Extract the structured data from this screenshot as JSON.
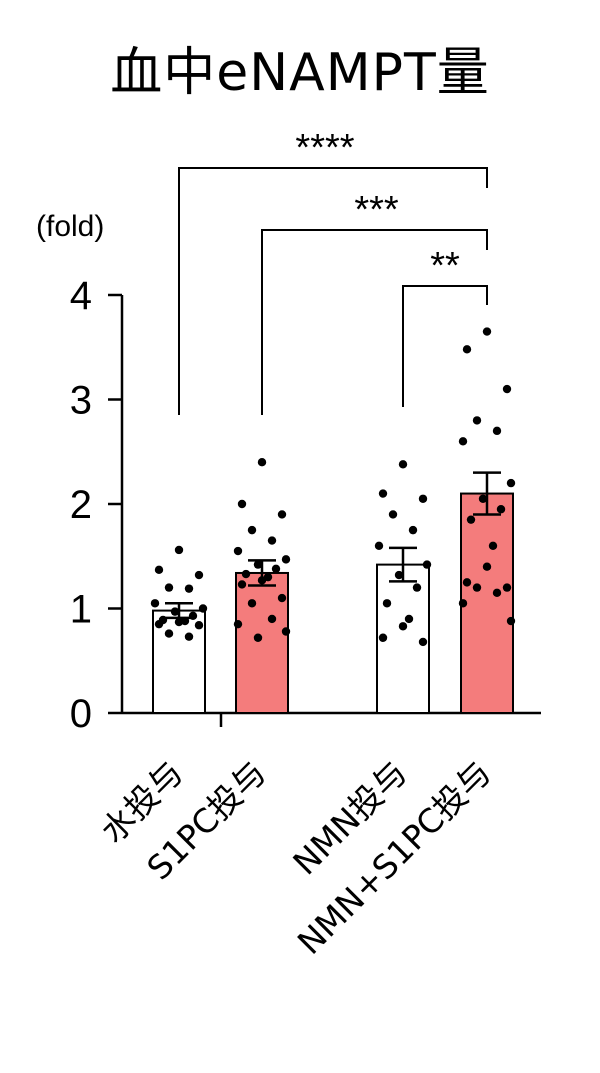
{
  "title": "血中eNAMPT量",
  "ylabel": "(fold)",
  "chart_data": {
    "type": "bar",
    "title": "血中eNAMPT量",
    "ylabel": "(fold)",
    "ylim": [
      0,
      4
    ],
    "yticks": [
      0,
      1,
      2,
      3,
      4
    ],
    "categories": [
      "水投与",
      "S1PC投与",
      "NMN投与",
      "NMN+S1PC投与"
    ],
    "values": [
      0.98,
      1.34,
      1.42,
      2.1
    ],
    "sem": [
      0.07,
      0.12,
      0.16,
      0.2
    ],
    "colors": [
      "#ffffff",
      "#f47c7c",
      "#ffffff",
      "#f47c7c"
    ],
    "points": [
      [
        1.56,
        1.37,
        1.32,
        1.2,
        1.19,
        1.05,
        1.0,
        0.97,
        0.93,
        0.89,
        0.88,
        0.87,
        0.85,
        0.84,
        0.76,
        0.73
      ],
      [
        2.4,
        2.0,
        1.9,
        1.75,
        1.65,
        1.55,
        1.47,
        1.42,
        1.38,
        1.33,
        1.3,
        1.27,
        1.23,
        1.1,
        1.05,
        0.9,
        0.85,
        0.78,
        0.72
      ],
      [
        2.38,
        2.1,
        2.05,
        1.9,
        1.75,
        1.6,
        1.42,
        1.32,
        1.2,
        1.05,
        0.9,
        0.83,
        0.72,
        0.68
      ],
      [
        3.65,
        3.48,
        3.1,
        2.8,
        2.7,
        2.6,
        2.2,
        2.05,
        1.95,
        1.85,
        1.6,
        1.4,
        1.25,
        1.2,
        1.2,
        1.15,
        1.05,
        0.88
      ]
    ],
    "significance": [
      {
        "from": 0,
        "to": 3,
        "label": "****"
      },
      {
        "from": 1,
        "to": 3,
        "label": "***"
      },
      {
        "from": 2,
        "to": 3,
        "label": "**"
      }
    ]
  }
}
